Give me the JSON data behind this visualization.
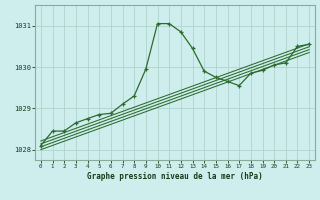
{
  "title": "Graphe pression niveau de la mer (hPa)",
  "bg_color": "#cdeeed",
  "plot_bg_color": "#cdeeed",
  "grid_color": "#b0d4cc",
  "line_color": "#2d6a2d",
  "border_color": "#8aaa99",
  "xlim": [
    -0.5,
    23.5
  ],
  "ylim": [
    1027.75,
    1031.5
  ],
  "xticks": [
    0,
    1,
    2,
    3,
    4,
    5,
    6,
    7,
    8,
    9,
    10,
    11,
    12,
    13,
    14,
    15,
    16,
    17,
    18,
    19,
    20,
    21,
    22,
    23
  ],
  "yticks": [
    1028,
    1029,
    1030,
    1031
  ],
  "main_line": {
    "x": [
      0,
      1,
      2,
      3,
      4,
      5,
      6,
      7,
      8,
      9,
      10,
      11,
      12,
      13,
      14,
      15,
      16,
      17,
      18,
      19,
      20,
      21,
      22,
      23
    ],
    "y": [
      1028.1,
      1028.45,
      1028.45,
      1028.65,
      1028.75,
      1028.85,
      1028.88,
      1029.1,
      1029.3,
      1029.95,
      1031.05,
      1031.05,
      1030.85,
      1030.45,
      1029.9,
      1029.75,
      1029.65,
      1029.55,
      1029.85,
      1029.92,
      1030.05,
      1030.1,
      1030.5,
      1030.55
    ]
  },
  "parallel_lines": [
    {
      "x": [
        0,
        23
      ],
      "y": [
        1028.0,
        1030.35
      ]
    },
    {
      "x": [
        0,
        23
      ],
      "y": [
        1028.07,
        1030.42
      ]
    },
    {
      "x": [
        0,
        23
      ],
      "y": [
        1028.14,
        1030.49
      ]
    },
    {
      "x": [
        0,
        23
      ],
      "y": [
        1028.21,
        1030.56
      ]
    }
  ]
}
